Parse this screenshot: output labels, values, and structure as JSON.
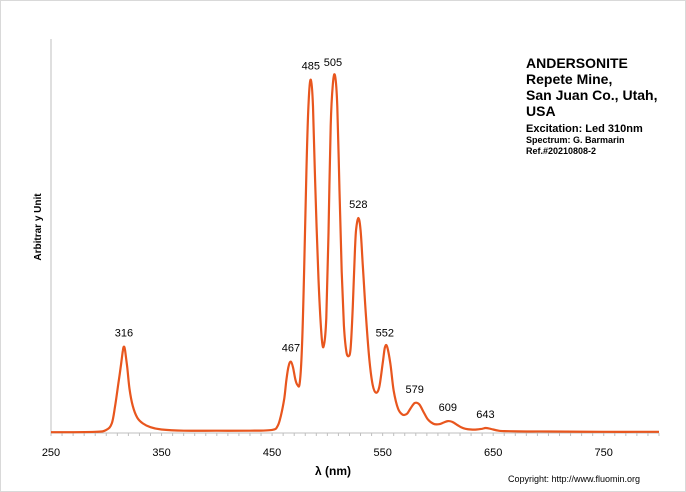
{
  "chart_data": {
    "type": "line",
    "xlabel": "λ (nm)",
    "ylabel": "Arbitrar y Unit",
    "xlim": [
      250,
      800
    ],
    "ylim": [
      0,
      1
    ],
    "x_ticks": [
      250,
      350,
      450,
      550,
      650,
      750
    ],
    "grid": false,
    "legend": "none",
    "series": [
      {
        "color": "#E8561E",
        "x": [
          250,
          290,
          300,
          305,
          308,
          311,
          313,
          315,
          316,
          317,
          319,
          321,
          324,
          328,
          333,
          340,
          350,
          370,
          400,
          430,
          450,
          455,
          458,
          461,
          463,
          465,
          467,
          469,
          471,
          473,
          475,
          477,
          479,
          481,
          483,
          485,
          487,
          489,
          492,
          495,
          497,
          499,
          501,
          503,
          505,
          507,
          509,
          511,
          513,
          515,
          517,
          519,
          521,
          523,
          525,
          526,
          528,
          530,
          532,
          535,
          538,
          541,
          544,
          547,
          550,
          552,
          554,
          557,
          560,
          564,
          568,
          572,
          575,
          579,
          583,
          587,
          591,
          596,
          601,
          605,
          609,
          613,
          617,
          621,
          625,
          630,
          635,
          640,
          643,
          646,
          650,
          655,
          660,
          680,
          700,
          750,
          800
        ],
        "y": [
          0.002,
          0.003,
          0.008,
          0.025,
          0.07,
          0.13,
          0.17,
          0.215,
          0.225,
          0.215,
          0.17,
          0.115,
          0.07,
          0.04,
          0.025,
          0.015,
          0.009,
          0.006,
          0.006,
          0.006,
          0.008,
          0.018,
          0.045,
          0.09,
          0.14,
          0.175,
          0.186,
          0.17,
          0.14,
          0.125,
          0.13,
          0.22,
          0.42,
          0.68,
          0.86,
          0.92,
          0.85,
          0.65,
          0.4,
          0.245,
          0.23,
          0.3,
          0.52,
          0.8,
          0.91,
          0.93,
          0.85,
          0.63,
          0.42,
          0.28,
          0.215,
          0.2,
          0.22,
          0.33,
          0.48,
          0.53,
          0.56,
          0.53,
          0.44,
          0.3,
          0.19,
          0.125,
          0.105,
          0.12,
          0.18,
          0.222,
          0.225,
          0.18,
          0.11,
          0.063,
          0.048,
          0.05,
          0.063,
          0.078,
          0.075,
          0.055,
          0.035,
          0.024,
          0.023,
          0.027,
          0.031,
          0.029,
          0.022,
          0.015,
          0.011,
          0.009,
          0.009,
          0.011,
          0.013,
          0.012,
          0.009,
          0.006,
          0.005,
          0.004,
          0.004,
          0.003,
          0.003
        ]
      }
    ],
    "annotations": [
      {
        "x": 316,
        "y": 0.225,
        "text": "316"
      },
      {
        "x": 467,
        "y": 0.186,
        "text": "467"
      },
      {
        "x": 485,
        "y": 0.92,
        "text": "485"
      },
      {
        "x": 505,
        "y": 0.93,
        "text": "505"
      },
      {
        "x": 528,
        "y": 0.56,
        "text": "528"
      },
      {
        "x": 552,
        "y": 0.225,
        "text": "552"
      },
      {
        "x": 579,
        "y": 0.078,
        "text": "579"
      },
      {
        "x": 609,
        "y": 0.031,
        "text": "609"
      },
      {
        "x": 643,
        "y": 0.013,
        "text": "643"
      }
    ]
  },
  "info": {
    "mineral": "ANDERSONITE",
    "locality_1": "Repete Mine,",
    "locality_2": "San Juan Co., Utah,",
    "locality_3": "USA",
    "excitation": "Excitation:  Led 310nm",
    "spectrum_by": "Spectrum: G. Barmarin",
    "ref": "Ref.#20210808-2"
  },
  "copyright": "Copyright: http://www.fluomin.org"
}
